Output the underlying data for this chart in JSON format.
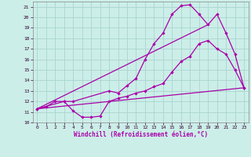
{
  "xlabel": "Windchill (Refroidissement éolien,°C)",
  "bg_color": "#cceee8",
  "grid_color": "#aad4ce",
  "line_color": "#aa00aa",
  "xlim": [
    -0.5,
    23.5
  ],
  "ylim": [
    10,
    21.5
  ],
  "xticks": [
    0,
    1,
    2,
    3,
    4,
    5,
    6,
    7,
    8,
    9,
    10,
    11,
    12,
    13,
    14,
    15,
    16,
    17,
    18,
    19,
    20,
    21,
    22,
    23
  ],
  "yticks": [
    10,
    11,
    12,
    13,
    14,
    15,
    16,
    17,
    18,
    19,
    20,
    21
  ],
  "line1_x": [
    0,
    1,
    2,
    3,
    4,
    5,
    6,
    7,
    8,
    9,
    10,
    11,
    12,
    13,
    14,
    15,
    16,
    17,
    18,
    19,
    20,
    21,
    22,
    23
  ],
  "line1_y": [
    11.3,
    11.5,
    12.0,
    12.0,
    11.1,
    10.5,
    10.5,
    10.6,
    12.0,
    12.3,
    12.5,
    12.8,
    13.0,
    13.4,
    13.7,
    14.8,
    15.8,
    16.3,
    17.5,
    17.8,
    17.0,
    16.5,
    15.0,
    13.3
  ],
  "line2_x": [
    0,
    3,
    4,
    8,
    9,
    10,
    11,
    12,
    13,
    14,
    15,
    16,
    17,
    18,
    19,
    20,
    21,
    22,
    23
  ],
  "line2_y": [
    11.3,
    12.0,
    12.0,
    13.0,
    12.8,
    13.5,
    14.2,
    16.0,
    17.5,
    18.5,
    20.3,
    21.1,
    21.2,
    20.3,
    19.3,
    20.3,
    18.5,
    16.5,
    13.3
  ],
  "line3_x": [
    0,
    23
  ],
  "line3_y": [
    11.3,
    13.3
  ],
  "line4_x": [
    0,
    19
  ],
  "line4_y": [
    11.3,
    19.3
  ]
}
